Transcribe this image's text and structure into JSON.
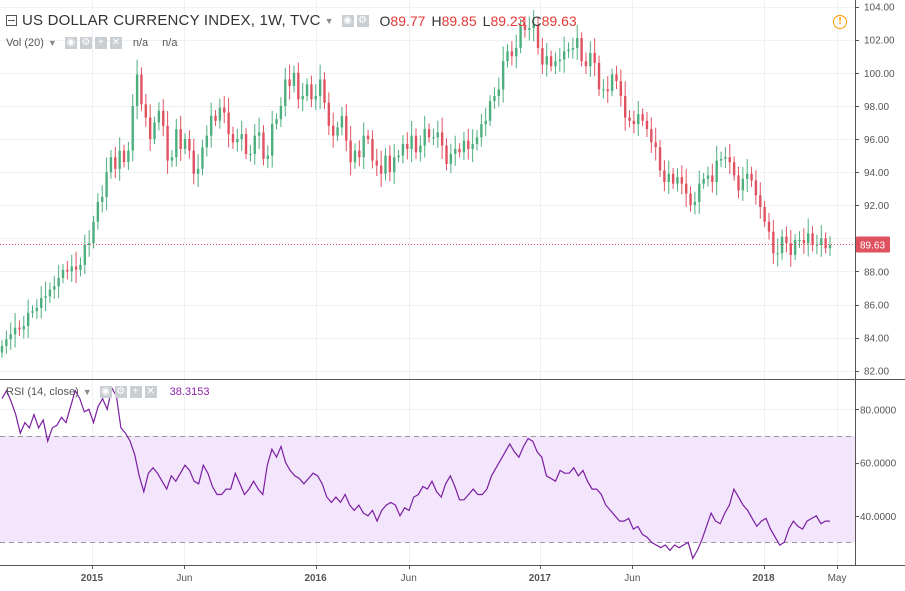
{
  "header": {
    "symbol_title": "US DOLLAR CURRENCY INDEX, 1W, TVC",
    "ohlc": [
      {
        "key": "O",
        "value": "89.77"
      },
      {
        "key": "H",
        "value": "89.85"
      },
      {
        "key": "L",
        "value": "89.23"
      },
      {
        "key": "C",
        "value": "89.63"
      }
    ]
  },
  "volume": {
    "label": "Vol (20)",
    "value1": "n/a",
    "value2": "n/a"
  },
  "rsi": {
    "label": "RSI (14, close)",
    "value": "38.3153"
  },
  "colors": {
    "up": "#4caf7d",
    "down": "#e05260",
    "rsi_line": "#7b1fa2",
    "rsi_band": "#f3e5fb",
    "price_label_bg": "#e05260",
    "warning": "#ff9800"
  },
  "icons": [
    "collapse-icon",
    "settings-icon",
    "add-icon",
    "close-icon",
    "warning-icon",
    "chevron-down-icon"
  ],
  "chart_data": [
    {
      "type": "candlestick",
      "title": "US DOLLAR CURRENCY INDEX, 1W, TVC",
      "ylim": [
        81.5,
        104.4
      ],
      "y_ticks": [
        "104.00",
        "102.00",
        "100.00",
        "98.00",
        "96.00",
        "94.00",
        "92.00",
        "90.00",
        "88.00",
        "86.00",
        "84.00",
        "82.00"
      ],
      "x_ticks": [
        "2015",
        "Jun",
        "2016",
        "Jun",
        "2017",
        "Jun",
        "2018",
        "May"
      ],
      "x_range": [
        "2014-08-04",
        "2018-05-14"
      ],
      "last_price": 89.63,
      "last_price_label": "89.63",
      "grid": true,
      "closes": [
        83.5,
        83.9,
        84.2,
        84.6,
        84.5,
        84.7,
        85.5,
        85.6,
        85.8,
        86.4,
        86.5,
        86.9,
        87.1,
        87.6,
        88.1,
        88.0,
        88.3,
        88.1,
        88.4,
        89.6,
        89.7,
        91.0,
        92.2,
        92.5,
        94.0,
        94.9,
        94.2,
        95.3,
        94.6,
        95.3,
        98.0,
        99.9,
        98.1,
        97.3,
        96.0,
        97.0,
        97.7,
        96.8,
        94.7,
        94.9,
        96.6,
        95.4,
        96.0,
        95.3,
        93.9,
        94.2,
        95.5,
        96.2,
        97.4,
        97.1,
        97.9,
        97.6,
        96.3,
        95.8,
        96.0,
        96.3,
        95.1,
        95.1,
        96.2,
        96.4,
        94.8,
        95.0,
        96.9,
        97.2,
        98.0,
        99.6,
        99.2,
        100.0,
        98.4,
        98.6,
        99.3,
        98.4,
        98.6,
        99.6,
        98.2,
        96.8,
        96.2,
        96.7,
        97.4,
        95.9,
        94.6,
        95.3,
        94.9,
        96.2,
        96.0,
        94.7,
        94.4,
        93.9,
        95.0,
        94.0,
        94.9,
        95.0,
        95.7,
        95.4,
        96.2,
        95.2,
        95.6,
        96.6,
        96.1,
        96.1,
        96.4,
        95.6,
        94.5,
        95.1,
        95.4,
        95.2,
        95.9,
        95.4,
        95.7,
        96.1,
        96.9,
        97.1,
        98.3,
        98.6,
        99.0,
        100.7,
        101.3,
        101.0,
        101.5,
        102.9,
        102.6,
        102.7,
        102.9,
        101.5,
        100.5,
        101.0,
        100.4,
        100.7,
        100.8,
        101.3,
        101.4,
        101.5,
        102.1,
        100.7,
        100.4,
        101.2,
        100.6,
        99.0,
        99.0,
        98.9,
        99.9,
        99.5,
        98.6,
        97.3,
        97.1,
        96.9,
        97.5,
        97.1,
        96.6,
        95.8,
        95.5,
        94.1,
        93.4,
        93.9,
        93.3,
        93.7,
        93.3,
        92.7,
        92.0,
        92.2,
        93.3,
        93.6,
        93.8,
        93.4,
        94.7,
        94.8,
        94.9,
        94.6,
        93.8,
        92.9,
        93.6,
        93.9,
        93.5,
        92.6,
        91.9,
        91.0,
        90.4,
        89.1,
        89.1,
        90.1,
        89.7,
        89.0,
        89.9,
        89.9,
        89.7,
        90.3,
        89.6,
        89.6,
        90.0,
        89.4,
        89.6
      ],
      "highs_note": "wicks extend roughly 0.3-0.9 above/below candle bodies"
    },
    {
      "type": "line",
      "title": "RSI (14, close)",
      "ylim": [
        21.5,
        91
      ],
      "y_ticks": [
        "80.0000",
        "60.0000",
        "40.0000"
      ],
      "band": [
        30,
        70
      ],
      "last_value_label": "38.3153",
      "values": [
        84,
        87,
        83,
        78,
        71,
        75,
        73,
        78,
        73,
        76,
        68,
        73,
        74,
        77,
        75,
        81,
        87,
        84,
        79,
        80,
        75,
        81,
        84,
        80,
        88,
        85,
        73,
        71,
        68,
        63,
        55,
        49,
        56,
        58,
        56,
        53,
        50,
        55,
        53,
        56,
        59,
        57,
        53,
        52,
        59,
        56,
        51,
        48,
        48,
        50,
        50,
        56,
        52,
        48,
        50,
        53,
        50,
        48,
        59,
        65,
        62,
        66,
        60,
        57,
        55,
        54,
        52,
        54,
        56,
        55,
        52,
        47,
        45,
        47,
        45,
        48,
        44,
        42,
        44,
        41,
        40,
        42,
        38,
        42,
        44,
        45,
        44,
        40,
        43,
        42,
        47,
        48,
        51,
        50,
        53,
        49,
        47,
        52,
        55,
        51,
        46,
        46,
        48,
        50,
        48,
        48,
        50,
        55,
        58,
        61,
        64,
        67,
        64,
        62,
        66,
        69,
        68,
        64,
        62,
        55,
        54,
        53,
        57,
        56,
        56,
        58,
        55,
        57,
        53,
        50,
        50,
        48,
        44,
        42,
        40,
        38,
        38,
        39,
        35,
        36,
        33,
        32,
        30,
        29,
        28,
        29,
        27,
        29,
        28,
        29,
        30,
        24,
        27,
        31,
        36,
        41,
        38,
        37,
        41,
        44,
        50,
        47,
        44,
        42,
        39,
        36,
        38,
        39,
        35,
        32,
        29,
        30,
        35,
        38,
        36,
        35,
        38,
        39,
        40,
        37,
        38,
        38
      ],
      "x_ticks": [
        "2015",
        "Jun",
        "2016",
        "Jun",
        "2017",
        "Jun",
        "2018",
        "May"
      ]
    }
  ]
}
